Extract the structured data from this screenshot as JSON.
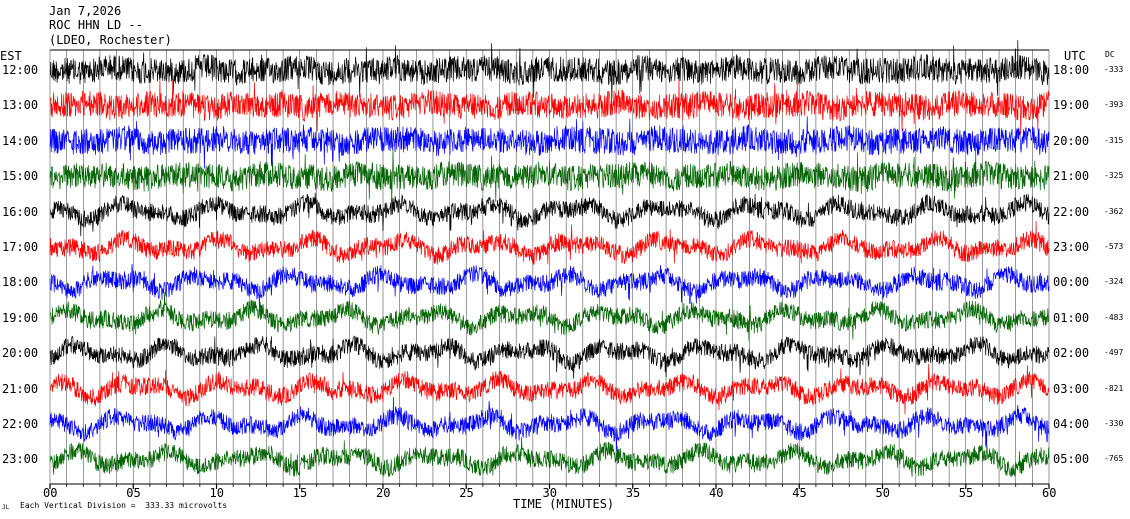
{
  "header": {
    "date": "Jan 7,2026",
    "station": "ROC HHN LD --",
    "location": "(LDEO, Rochester)"
  },
  "left_axis_label": "EST",
  "right_axis_label": "UTC",
  "dc_label": "DC",
  "footer": {
    "xlabel": "TIME (MINUTES)",
    "scale_note": "Each Vertical Division =  333.33 microvolts",
    "corner_mark": "JL"
  },
  "chart_data": {
    "type": "line",
    "title": "Jan 7,2026 ROC HHN LD -- (LDEO, Rochester)",
    "xlabel": "TIME (MINUTES)",
    "xlim": [
      0,
      60
    ],
    "x_ticks": [
      "00",
      "05",
      "10",
      "15",
      "20",
      "25",
      "30",
      "35",
      "40",
      "45",
      "50",
      "55",
      "60"
    ],
    "grid": "vertical lines every minute",
    "trace_colors": [
      "#000000",
      "#ff0000",
      "#0000ff",
      "#006400"
    ],
    "rows": [
      {
        "est": "12:00",
        "utc": "18:00",
        "dc": "-333",
        "color": "#000000"
      },
      {
        "est": "13:00",
        "utc": "19:00",
        "dc": "-393",
        "color": "#ff0000"
      },
      {
        "est": "14:00",
        "utc": "20:00",
        "dc": "-315",
        "color": "#0000ff"
      },
      {
        "est": "15:00",
        "utc": "21:00",
        "dc": "-325",
        "color": "#006400"
      },
      {
        "est": "16:00",
        "utc": "22:00",
        "dc": "-362",
        "color": "#000000"
      },
      {
        "est": "17:00",
        "utc": "23:00",
        "dc": "-573",
        "color": "#ff0000"
      },
      {
        "est": "18:00",
        "utc": "00:00",
        "dc": "-324",
        "color": "#0000ff"
      },
      {
        "est": "19:00",
        "utc": "01:00",
        "dc": "-483",
        "color": "#006400"
      },
      {
        "est": "20:00",
        "utc": "02:00",
        "dc": "-497",
        "color": "#000000"
      },
      {
        "est": "21:00",
        "utc": "03:00",
        "dc": "-821",
        "color": "#ff0000"
      },
      {
        "est": "22:00",
        "utc": "04:00",
        "dc": "-330",
        "color": "#0000ff"
      },
      {
        "est": "23:00",
        "utc": "05:00",
        "dc": "-765",
        "color": "#006400"
      }
    ]
  }
}
